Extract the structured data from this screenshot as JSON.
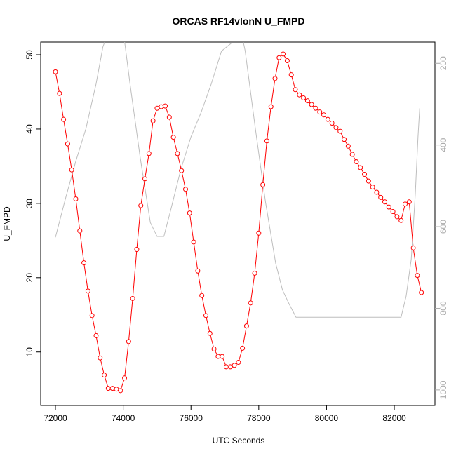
{
  "chart_data": {
    "type": "line",
    "title": "ORCAS RF14vlonN U_FMPD",
    "x_label": "UTC Seconds",
    "y_label": "U_FMPD",
    "xlim": [
      71565,
      83200
    ],
    "xticks": [
      72000,
      74000,
      76000,
      78000,
      80000,
      82000
    ],
    "ylim": [
      2.8,
      51.7
    ],
    "yticks": [
      10,
      20,
      30,
      40,
      50
    ],
    "y2lim": [
      1038,
      148
    ],
    "y2ticks": [
      200,
      400,
      600,
      800,
      1000
    ],
    "series": [
      {
        "color": "#ff0000",
        "marker": "open-circle",
        "x": [
          72000,
          72120,
          72240,
          72360,
          72480,
          72600,
          72720,
          72840,
          72960,
          73080,
          73200,
          73320,
          73440,
          73560,
          73680,
          73800,
          73920,
          74040,
          74160,
          74280,
          74400,
          74520,
          74640,
          74760,
          74880,
          75000,
          75120,
          75240,
          75360,
          75480,
          75600,
          75720,
          75840,
          75960,
          76080,
          76200,
          76320,
          76440,
          76560,
          76680,
          76800,
          76920,
          77040,
          77160,
          77280,
          77400,
          77520,
          77640,
          77760,
          77880,
          78000,
          78120,
          78240,
          78360,
          78480,
          78600,
          78720,
          78840,
          78960,
          79080,
          79200,
          79320,
          79440,
          79560,
          79680,
          79800,
          79920,
          80040,
          80160,
          80280,
          80400,
          80520,
          80640,
          80760,
          80880,
          81000,
          81120,
          81240,
          81360,
          81480,
          81600,
          81720,
          81840,
          81960,
          82080,
          82200,
          82320,
          82440,
          82560,
          82680,
          82800
        ],
        "values": [
          47.7,
          44.8,
          41.3,
          38.0,
          34.5,
          30.6,
          26.3,
          22.0,
          18.2,
          14.9,
          12.2,
          9.2,
          6.9,
          5.1,
          5.1,
          5.0,
          4.8,
          6.5,
          11.4,
          17.2,
          23.8,
          29.7,
          33.3,
          36.7,
          41.1,
          42.8,
          43.0,
          43.1,
          41.6,
          38.9,
          36.7,
          34.4,
          31.9,
          28.7,
          24.8,
          20.9,
          17.6,
          14.9,
          12.5,
          10.4,
          9.4,
          9.4,
          8.0,
          8.0,
          8.2,
          8.6,
          10.5,
          13.5,
          16.6,
          20.6,
          26.0,
          32.5,
          38.4,
          43.0,
          46.8,
          49.6,
          50.1,
          49.2,
          47.3,
          45.3,
          44.6,
          44.2,
          43.8,
          43.3,
          42.8,
          42.3,
          41.9,
          41.3,
          40.8,
          40.2,
          39.7,
          38.6,
          37.7,
          36.6,
          35.6,
          34.8,
          33.9,
          33.0,
          32.2,
          31.5,
          30.8,
          30.2,
          29.5,
          28.9,
          28.2,
          27.7,
          29.9,
          30.2,
          24.0,
          20.3,
          18.0
        ]
      },
      {
        "color": "#bebebe",
        "axis": "y2",
        "x": [
          72000,
          72300,
          72600,
          72900,
          73200,
          73400,
          73700,
          74000,
          74200,
          74500,
          74800,
          75000,
          75200,
          75400,
          75700,
          76000,
          76300,
          76600,
          76900,
          77200,
          77400,
          77600,
          77900,
          78200,
          78500,
          78700,
          78900,
          79100,
          80000,
          81000,
          82200,
          82350,
          82500,
          82620,
          82700,
          82750
        ],
        "values": [
          626,
          530,
          440,
          360,
          250,
          160,
          90,
          120,
          250,
          430,
          590,
          624,
          624,
          560,
          460,
          380,
          320,
          250,
          170,
          150,
          90,
          170,
          360,
          540,
          690,
          755,
          790,
          822,
          822,
          822,
          822,
          770,
          680,
          520,
          380,
          310
        ]
      }
    ]
  }
}
